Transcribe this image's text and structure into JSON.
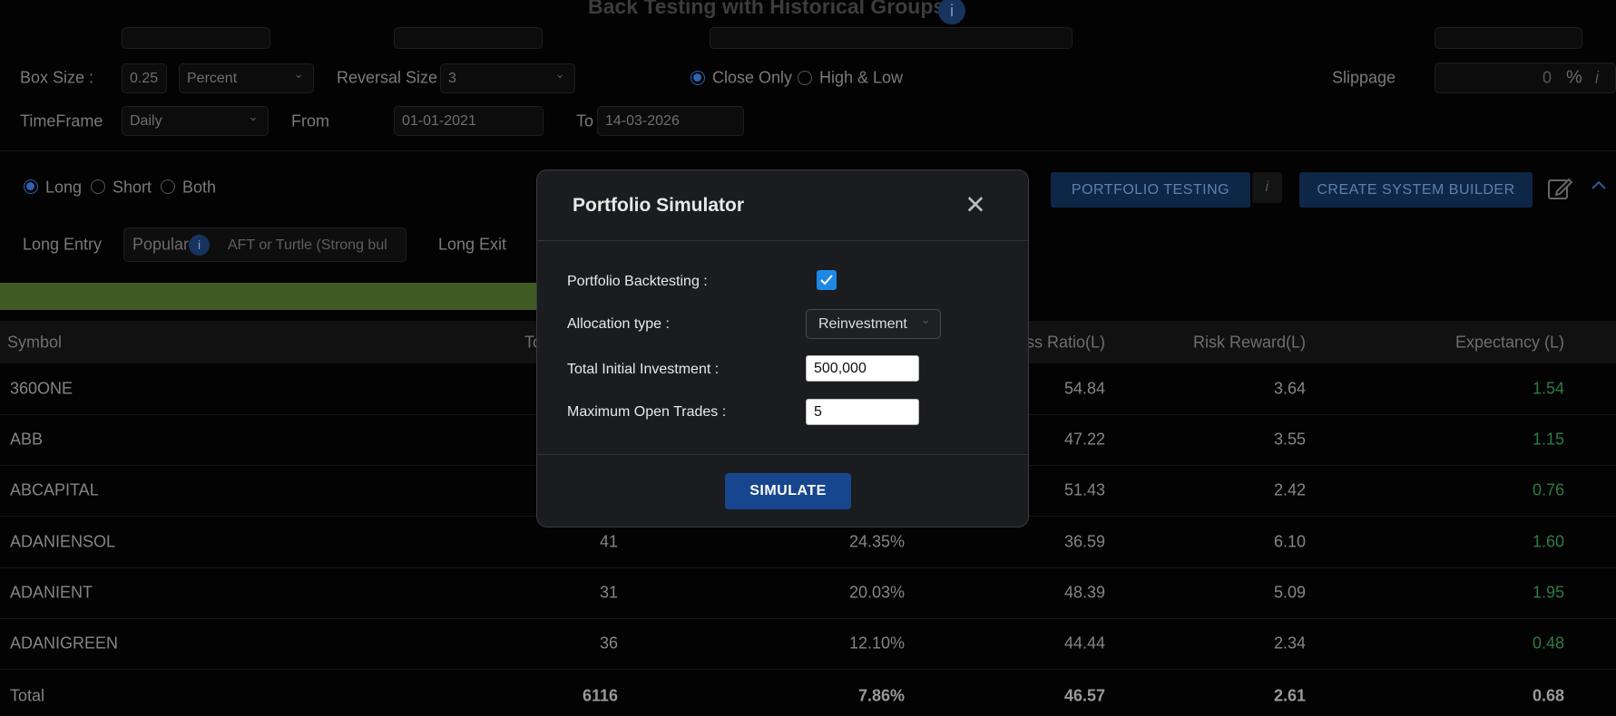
{
  "header": {
    "title": "Back Testing with Historical Groups",
    "info": "i"
  },
  "settings": {
    "box_size_label": "Box Size :",
    "box_size": "0.25",
    "box_unit": "Percent",
    "reversal_label": "Reversal Size :",
    "reversal": "3",
    "close_only": "Close Only",
    "high_low": "High & Low",
    "slippage_label": "Slippage",
    "slippage": "0",
    "slippage_unit": "%",
    "slippage_info": "i",
    "timeframe_label": "TimeFrame",
    "timeframe": "Daily",
    "from_label": "From",
    "from": "01-01-2021",
    "to_label": "To",
    "to": "14-03-2026"
  },
  "controls": {
    "long": "Long",
    "short": "Short",
    "both": "Both",
    "portfolio_testing": "PORTFOLIO TESTING",
    "info": "i",
    "create_system_builder": "CREATE SYSTEM BUILDER",
    "long_entry_label": "Long Entry",
    "popular": "Popular",
    "popular_info": "i",
    "long_entry": "AFT or Turtle (Strong bul",
    "long_exit_label": "Long Exit"
  },
  "table": {
    "columns": {
      "symbol": "Symbol",
      "trades": "To",
      "ratio": "ess Ratio(L)",
      "rr": "Risk Reward(L)",
      "expectancy": "Expectancy (L)"
    },
    "rows": [
      {
        "symbol": "360ONE",
        "ratio": "54.84",
        "rr": "3.64",
        "expectancy": "1.54"
      },
      {
        "symbol": "ABB",
        "ratio": "47.22",
        "rr": "3.55",
        "expectancy": "1.15"
      },
      {
        "symbol": "ABCAPITAL",
        "ratio": "51.43",
        "rr": "2.42",
        "expectancy": "0.76"
      },
      {
        "symbol": "ADANIENSOL",
        "trades": "41",
        "return": "24.35%",
        "ratio": "36.59",
        "rr": "6.10",
        "expectancy": "1.60"
      },
      {
        "symbol": "ADANIENT",
        "trades": "31",
        "return": "20.03%",
        "ratio": "48.39",
        "rr": "5.09",
        "expectancy": "1.95"
      },
      {
        "symbol": "ADANIGREEN",
        "trades": "36",
        "return": "12.10%",
        "ratio": "44.44",
        "rr": "2.34",
        "expectancy": "0.48"
      }
    ],
    "total": {
      "symbol": "Total",
      "trades": "6116",
      "return": "7.86%",
      "ratio": "46.57",
      "rr": "2.61",
      "expectancy": "0.68"
    }
  },
  "modal": {
    "title": "Portfolio Simulator",
    "close": "✕",
    "backtesting_label": "Portfolio Backtesting :",
    "allocation_label": "Allocation type :",
    "allocation": "Reinvestment",
    "investment_label": "Total Initial Investment :",
    "investment": "500,000",
    "max_trades_label": "Maximum Open Trades :",
    "max_trades": "5",
    "simulate": "SIMULATE"
  }
}
